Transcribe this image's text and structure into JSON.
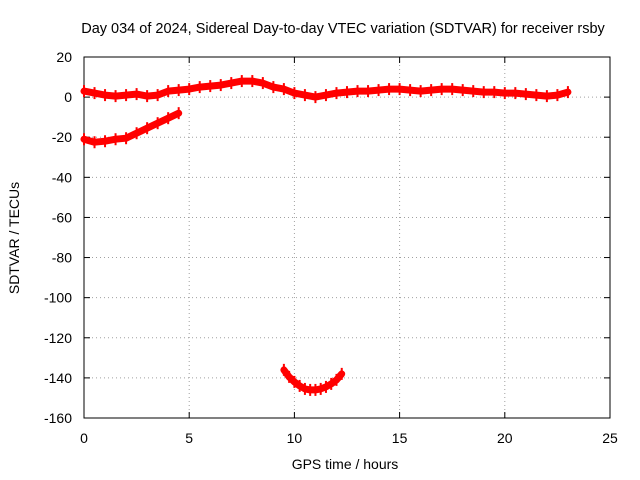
{
  "chart_data": {
    "type": "scatter",
    "title": "Day 034 of 2024, Sidereal Day-to-day VTEC variation (SDTVAR) for receiver rsby",
    "xlabel": "GPS time / hours",
    "ylabel": "SDTVAR / TECUs",
    "xlim": [
      0,
      25
    ],
    "ylim": [
      -160,
      20
    ],
    "xticks": [
      0,
      5,
      10,
      15,
      20,
      25
    ],
    "yticks": [
      -160,
      -140,
      -120,
      -100,
      -80,
      -60,
      -40,
      -20,
      0,
      20
    ],
    "grid": true,
    "series_color": "#ff0000",
    "series": [
      {
        "name": "main-band",
        "x": [
          0,
          0.5,
          1,
          1.5,
          2,
          2.5,
          3,
          3.5,
          4,
          4.5,
          5,
          5.5,
          6,
          6.5,
          7,
          7.5,
          8,
          8.5,
          9,
          9.5,
          10,
          10.5,
          11,
          11.5,
          12,
          12.5,
          13,
          13.5,
          14,
          14.5,
          15,
          15.5,
          16,
          16.5,
          17,
          17.5,
          18,
          18.5,
          19,
          19.5,
          20,
          20.5,
          21,
          21.5,
          22,
          22.5,
          23
        ],
        "y": [
          3,
          2,
          1,
          0.5,
          1,
          1.5,
          0.5,
          1,
          3,
          3.5,
          4,
          5,
          5.5,
          6,
          7,
          8,
          8,
          7,
          5,
          4,
          2,
          1,
          0,
          1,
          2,
          2.5,
          3,
          3,
          3.5,
          4,
          4,
          3.5,
          3,
          3.5,
          4,
          4,
          3.5,
          3,
          2.5,
          2.5,
          2,
          2,
          1.5,
          1,
          0.5,
          1,
          2.5
        ]
      },
      {
        "name": "early-rising-segment",
        "x": [
          0,
          0.5,
          1,
          1.5,
          2,
          2.5,
          3,
          3.5,
          4,
          4.5
        ],
        "y": [
          -21,
          -22.5,
          -22,
          -21,
          -20.5,
          -18,
          -15.5,
          -13,
          -10.5,
          -8
        ]
      },
      {
        "name": "deep-dip-segment",
        "x": [
          9.5,
          9.75,
          10,
          10.25,
          10.5,
          10.75,
          11,
          11.25,
          11.5,
          11.75,
          12,
          12.25
        ],
        "y": [
          -136,
          -139.5,
          -142,
          -144,
          -145.5,
          -146,
          -146,
          -145.5,
          -144.5,
          -143,
          -141,
          -138
        ]
      }
    ]
  }
}
